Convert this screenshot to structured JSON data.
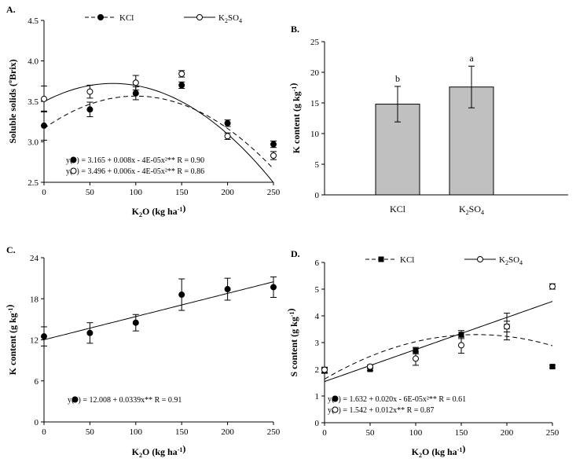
{
  "chart_data": [
    {
      "panel": "A.",
      "type": "scatter",
      "xlabel": "K2O (kg ha-1)",
      "xlabel_parts": {
        "main": "K",
        "sub": "2",
        "mid": "O (kg ha",
        "sup": "-1",
        "end": ")"
      },
      "ylabel": "Soluble solids (ºBrix)",
      "xlim": [
        0,
        250
      ],
      "ylim": [
        2.5,
        4.5
      ],
      "xticks": [
        "0",
        "50",
        "100",
        "150",
        "200",
        "250"
      ],
      "yticks": [
        "2.5",
        "3.0",
        "3.5",
        "4.0",
        "4.5"
      ],
      "legend": {
        "position": "top",
        "entries": [
          "KCl",
          "K2SO4"
        ]
      },
      "series": [
        {
          "name": "KCl",
          "marker": "filled-circle",
          "line": "dashed",
          "x": [
            0,
            50,
            100,
            150,
            200,
            250
          ],
          "y": [
            3.2,
            3.4,
            3.6,
            3.7,
            3.23,
            2.97
          ],
          "err": [
            0.18,
            0.09,
            0.08,
            0.04,
            0.04,
            0.04
          ],
          "fit": [
            3.165,
            0.008,
            -4e-05
          ]
        },
        {
          "name": "K2SO4",
          "marker": "open-circle",
          "line": "solid",
          "x": [
            0,
            50,
            100,
            150,
            200,
            250
          ],
          "y": [
            3.53,
            3.62,
            3.73,
            3.84,
            3.07,
            2.83
          ],
          "err": [
            0.16,
            0.08,
            0.09,
            0.04,
            0.04,
            0.05
          ],
          "fit": [
            3.496,
            0.006,
            -4e-05
          ]
        }
      ],
      "annotations": [
        {
          "prefix": "y(",
          "symbol": "filled",
          "text": ") = 3.165 + 0.008x - 4E-05x²**    R = 0.90"
        },
        {
          "prefix": "y(",
          "symbol": "open",
          "text": ") = 3.496 + 0.006x - 4E-05x²**    R = 0.86"
        }
      ]
    },
    {
      "panel": "B.",
      "type": "bar",
      "ylabel": "K content (g kg-1)",
      "ylabel_parts": {
        "main": "K content (g kg",
        "sup": "-1",
        "end": ")"
      },
      "categories": [
        "KCl",
        "K2SO4"
      ],
      "values": [
        14.8,
        17.6
      ],
      "err": [
        2.9,
        3.4
      ],
      "letters": [
        "b",
        "a"
      ],
      "ylim": [
        0,
        25
      ],
      "yticks": [
        "0",
        "5",
        "10",
        "15",
        "20",
        "25"
      ]
    },
    {
      "panel": "C.",
      "type": "scatter",
      "xlabel": "K2O (kg ha-1)",
      "ylabel": "K content (g kg-1)",
      "xlim": [
        0,
        250
      ],
      "ylim": [
        0,
        24
      ],
      "xticks": [
        "0",
        "50",
        "100",
        "150",
        "200",
        "250"
      ],
      "yticks": [
        "0",
        "6",
        "12",
        "18",
        "24"
      ],
      "series": [
        {
          "marker": "filled-circle",
          "line": "solid",
          "x": [
            0,
            50,
            100,
            150,
            200,
            250
          ],
          "y": [
            12.5,
            13.0,
            14.5,
            18.6,
            19.4,
            19.7
          ],
          "err": [
            1.4,
            1.5,
            1.2,
            2.3,
            1.6,
            1.5
          ],
          "fit": [
            12.008,
            0.0339,
            0
          ]
        }
      ],
      "annotations": [
        {
          "prefix": "y(",
          "symbol": "filled",
          "text": ") = 12.008 + 0.0339x**    R = 0.91"
        }
      ]
    },
    {
      "panel": "D.",
      "type": "scatter",
      "xlabel": "K2O (kg ha-1)",
      "ylabel": "S content (g kg-1)",
      "xlim": [
        0,
        250
      ],
      "ylim": [
        0,
        6
      ],
      "xticks": [
        "0",
        "50",
        "100",
        "150",
        "200",
        "250"
      ],
      "yticks": [
        "0",
        "1",
        "2",
        "3",
        "4",
        "5",
        "6"
      ],
      "legend": {
        "position": "top",
        "entries": [
          "KCl",
          "K2SO4"
        ]
      },
      "series": [
        {
          "name": "KCl",
          "marker": "filled-square",
          "line": "dashed",
          "x": [
            0,
            50,
            100,
            150,
            200,
            250
          ],
          "y": [
            1.95,
            2.0,
            2.7,
            3.3,
            3.6,
            2.1
          ],
          "err": [
            0.1,
            0.05,
            0.12,
            0.15,
            0.2,
            0.05
          ],
          "fit": [
            1.632,
            0.02,
            -6e-05
          ]
        },
        {
          "name": "K2SO4",
          "marker": "open-circle",
          "line": "solid",
          "x": [
            0,
            50,
            100,
            150,
            200,
            250
          ],
          "y": [
            1.98,
            2.1,
            2.4,
            2.9,
            3.6,
            5.1
          ],
          "err": [
            0.1,
            0.06,
            0.25,
            0.3,
            0.5,
            0.1
          ],
          "fit": [
            1.542,
            0.012,
            0
          ]
        }
      ],
      "annotations": [
        {
          "prefix": "y(",
          "symbol": "filled",
          "text": ") = 1.632 + 0.020x - 6E-05x²**    R = 0.61"
        },
        {
          "prefix": "y(",
          "symbol": "open",
          "text": ") = 1.542 + 0.012x**    R = 0.87"
        }
      ]
    }
  ]
}
